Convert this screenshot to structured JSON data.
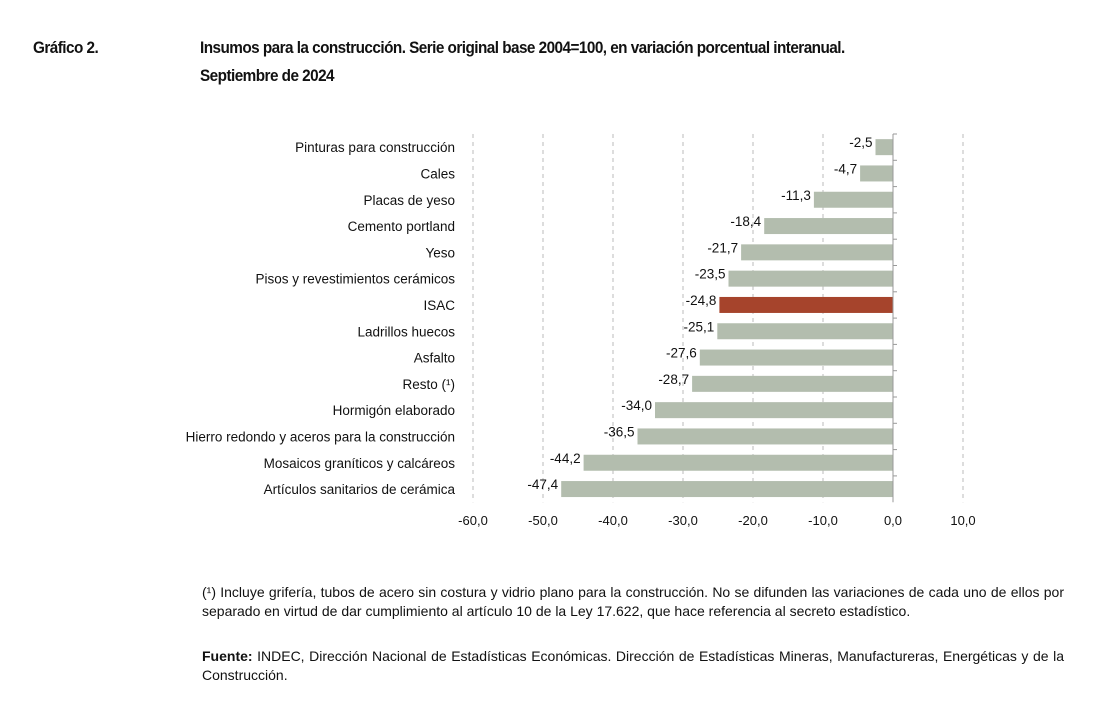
{
  "header": {
    "label": "Gráfico 2.",
    "title_line1": "Insumos para la construcción. Serie original base 2004=100, en variación porcentual interanual.",
    "title_line2": "Septiembre de 2024"
  },
  "chart_data": {
    "type": "bar",
    "orientation": "horizontal",
    "categories": [
      "Pinturas para construcción",
      "Cales",
      "Placas de yeso",
      "Cemento portland",
      "Yeso",
      "Pisos y revestimientos cerámicos",
      "ISAC",
      "Ladrillos huecos",
      "Asfalto",
      "Resto (¹)",
      "Hormigón elaborado",
      "Hierro redondo y aceros para la construcción",
      "Mosaicos graníticos y calcáreos",
      "Artículos sanitarios de cerámica"
    ],
    "values": [
      -2.5,
      -4.7,
      -11.3,
      -18.4,
      -21.7,
      -23.5,
      -24.8,
      -25.1,
      -27.6,
      -28.7,
      -34.0,
      -36.5,
      -44.2,
      -47.4
    ],
    "value_labels": [
      "-2,5",
      "-4,7",
      "-11,3",
      "-18,4",
      "-21,7",
      "-23,5",
      "-24,8",
      "-25,1",
      "-27,6",
      "-28,7",
      "-34,0",
      "-36,5",
      "-44,2",
      "-47,4"
    ],
    "highlight": "ISAC",
    "xlim": [
      -60,
      10
    ],
    "x_ticks": [
      -60,
      -50,
      -40,
      -30,
      -20,
      -10,
      0,
      10
    ],
    "x_tick_labels": [
      "-60,0",
      "-50,0",
      "-40,0",
      "-30,0",
      "-20,0",
      "-10,0",
      "0,0",
      "10,0"
    ],
    "grid": "vertical dashed",
    "colors": {
      "bar": "#b3bdae",
      "highlight": "#a6442c"
    }
  },
  "footnote": {
    "text": "(¹) Incluye grifería, tubos de acero sin costura y vidrio plano para la construcción. No se difunden las variaciones de cada uno de ellos por separado en virtud de dar cumplimiento al artículo 10 de la Ley 17.622, que hace referencia al secreto estadístico.",
    "source_label": "Fuente:",
    "source_text": "INDEC, Dirección Nacional de Estadísticas Económicas. Dirección de Estadísticas Mineras, Manufactureras, Energéticas y de la Construcción."
  }
}
